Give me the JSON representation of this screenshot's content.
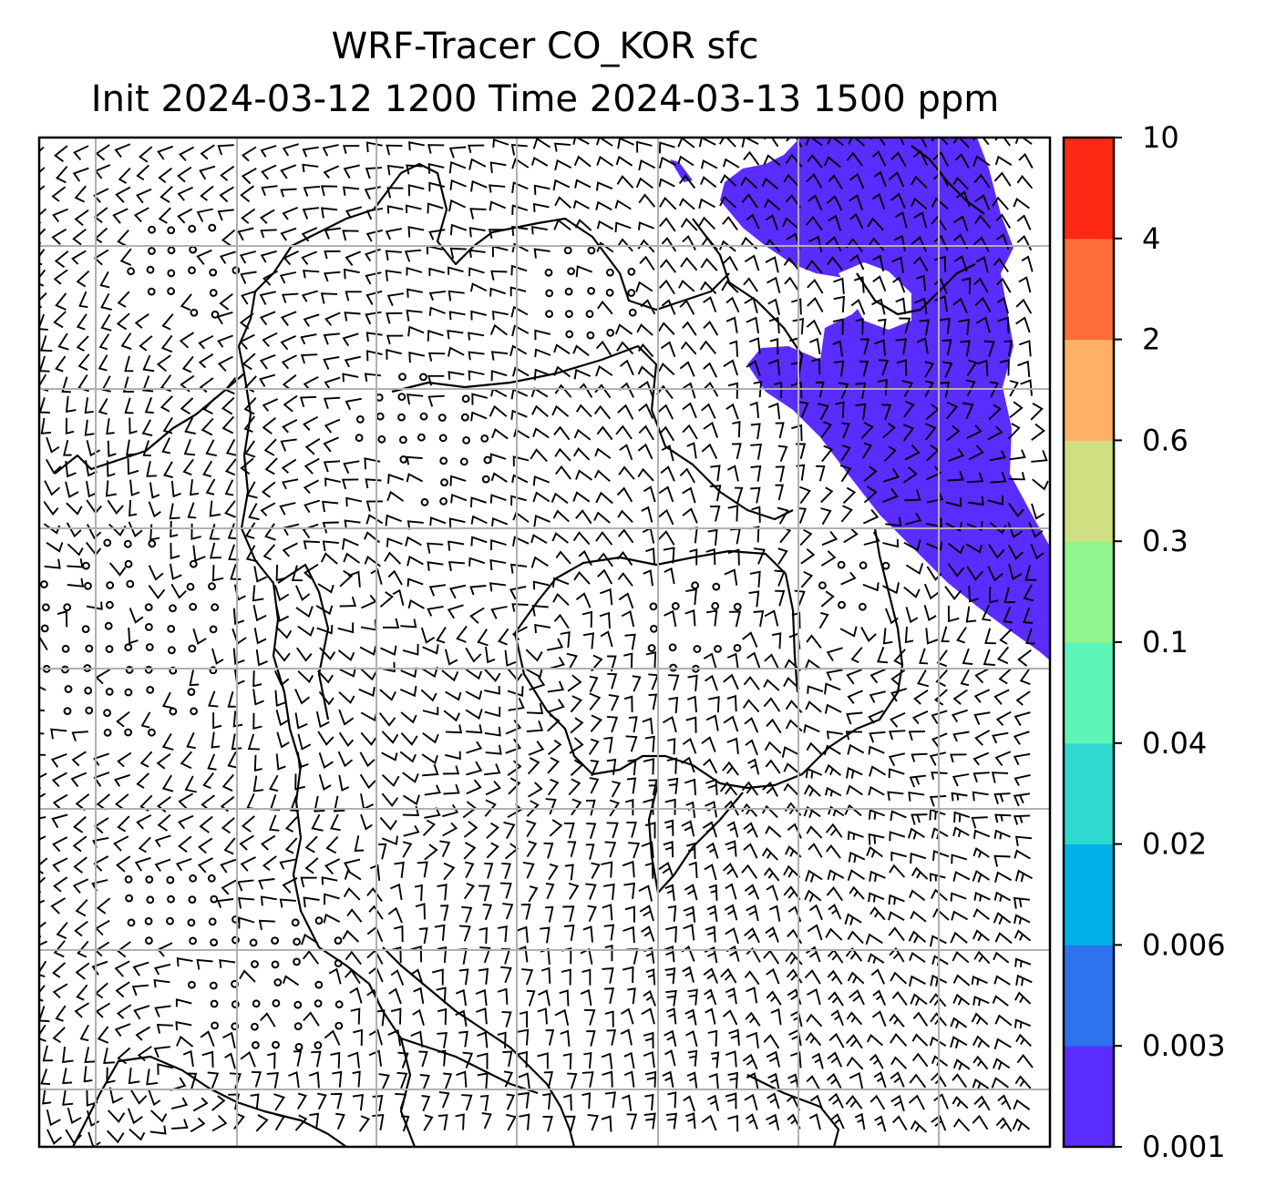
{
  "title": {
    "line1": "WRF-Tracer CO_KOR sfc",
    "line2": "Init 2024-03-12 1200 Time 2024-03-13 1500 ppm"
  },
  "colorbar": {
    "levels": [
      "0.001",
      "0.003",
      "0.006",
      "0.02",
      "0.04",
      "0.1",
      "0.3",
      "0.6",
      "2",
      "4",
      "10"
    ],
    "colors": [
      "#5b2cff",
      "#2f72f0",
      "#00b0e8",
      "#2fd9cf",
      "#5ef5b6",
      "#8ff58f",
      "#cfe082",
      "#fdb166",
      "#ff6d3a",
      "#ff2a15"
    ]
  },
  "map": {
    "plume_color": "#5b2cff",
    "grid_color": "#b0b0b0",
    "barb_color": "#000000",
    "coastline_color": "#000000"
  }
}
